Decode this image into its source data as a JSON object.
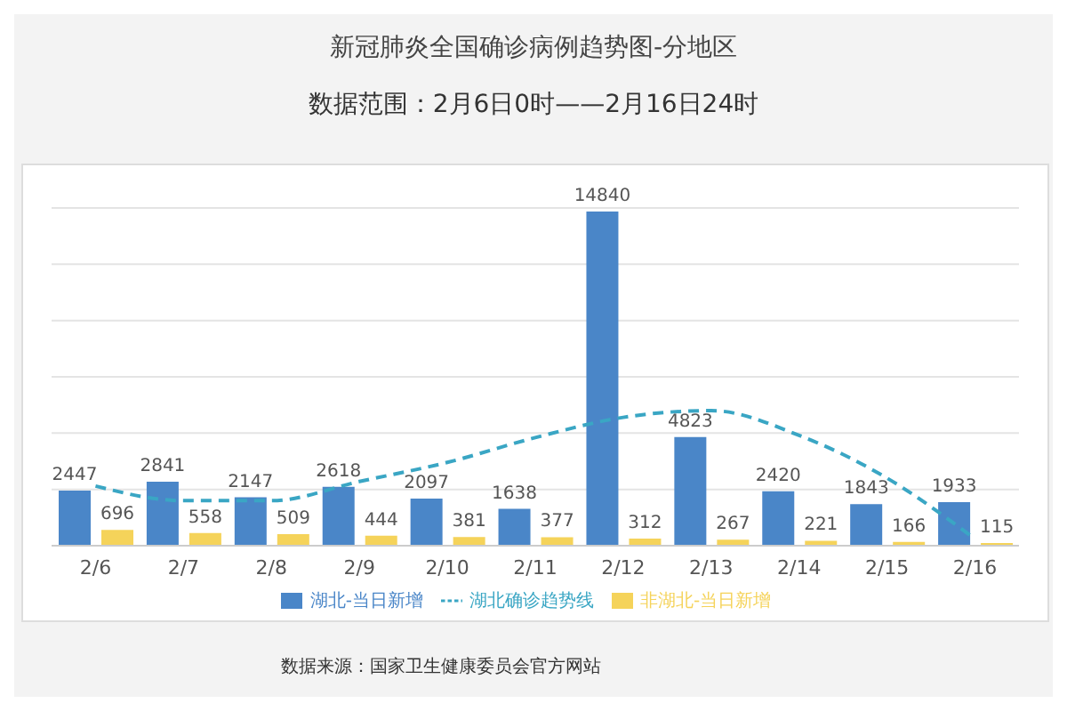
{
  "chart_data": {
    "type": "bar",
    "title": "新冠肺炎全国确诊病例趋势图-分地区",
    "subtitle": "数据范围：2月6日0时——2月16日24时",
    "categories": [
      "2/6",
      "2/7",
      "2/8",
      "2/9",
      "2/10",
      "2/11",
      "2/12",
      "2/13",
      "2/14",
      "2/15",
      "2/16"
    ],
    "series": [
      {
        "name": "湖北-当日新增",
        "color": "#4a86c8",
        "values": [
          2447,
          2841,
          2147,
          2618,
          2097,
          1638,
          14840,
          4823,
          2420,
          1843,
          1933
        ],
        "value_labels": [
          "2447",
          "2841",
          "2147",
          "2618",
          "2097",
          "1638",
          "14840",
          "4823",
          "2420",
          "1843",
          "1933"
        ]
      },
      {
        "name": "非湖北-当日新增",
        "color": "#f5d35a",
        "values": [
          696,
          558,
          509,
          444,
          381,
          377,
          312,
          267,
          221,
          166,
          115
        ],
        "value_labels": [
          "696",
          "558",
          "509",
          "444",
          "381",
          "377",
          "312",
          "267",
          "221",
          "166",
          "115"
        ]
      },
      {
        "name": "湖北确诊趋势线",
        "type": "line",
        "color": "#3aa6c4",
        "line_style": "dashed",
        "marker": "none",
        "values": [
          2650,
          2000,
          2000,
          2850,
          3700,
          4800,
          5700,
          6000,
          4900,
          3000,
          300
        ]
      }
    ],
    "grid": "y",
    "legend": "bottom",
    "tick_labels": "x",
    "annotations": [
      "数据来源：国家卫生健康委员会官方网站"
    ]
  }
}
